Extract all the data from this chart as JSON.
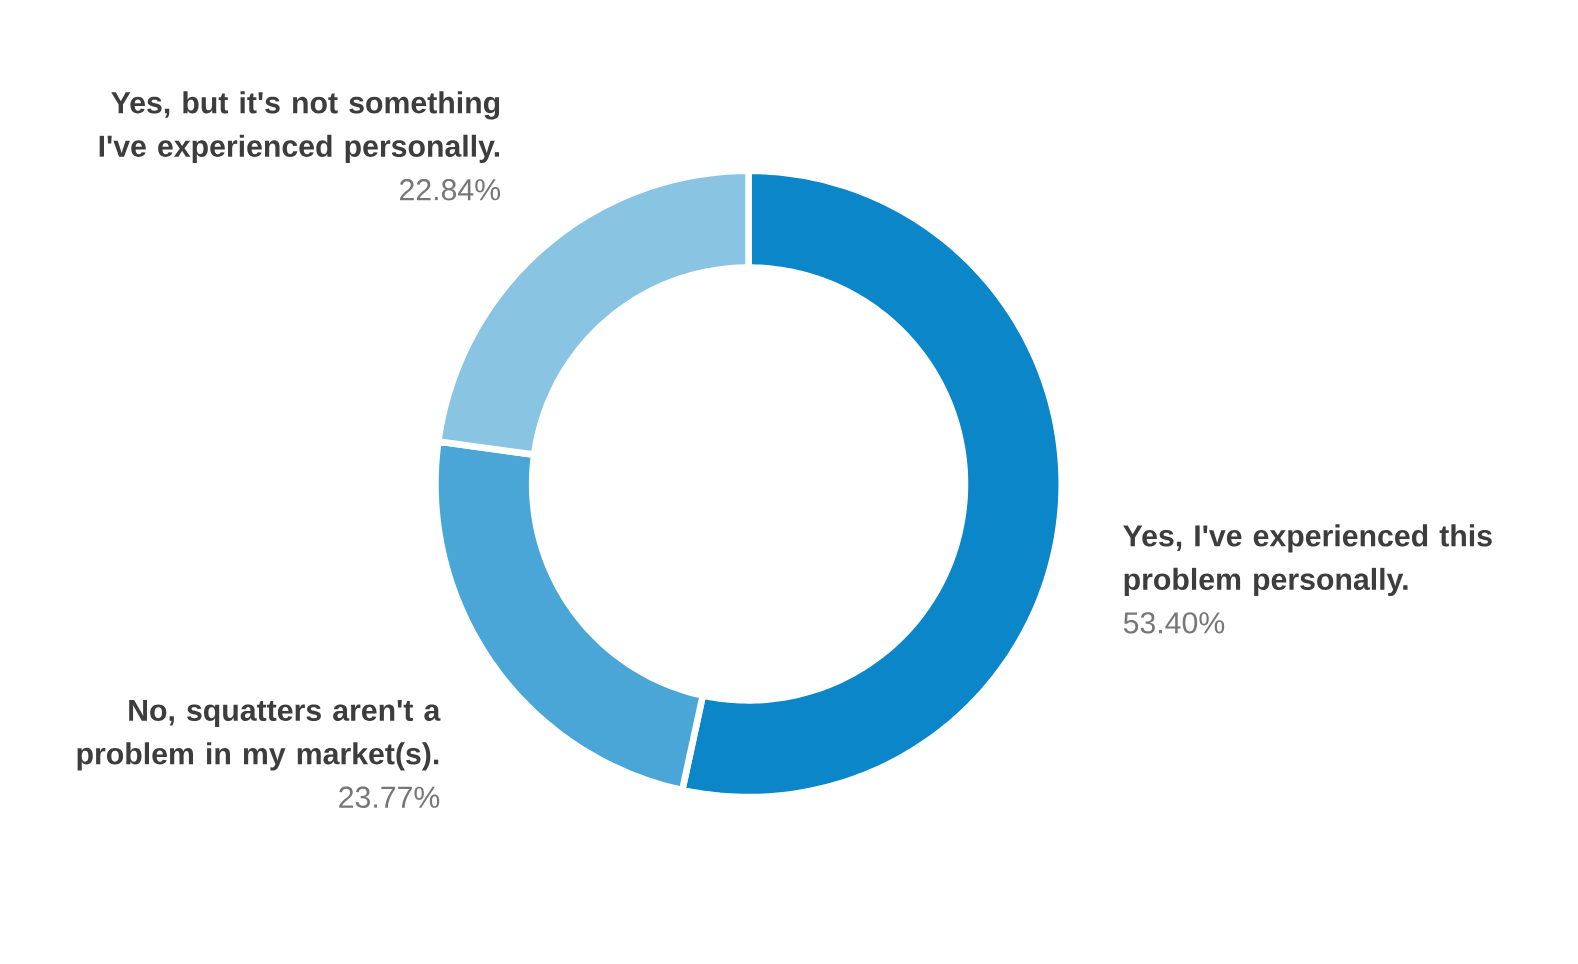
{
  "chart_data": {
    "type": "donut",
    "categories": [
      "Yes, I've experienced this problem personally.",
      "No, squatters aren't a problem in my market(s).",
      "Yes, but it's not something I've experienced personally."
    ],
    "values": [
      53.4,
      23.77,
      22.84
    ],
    "colors": [
      "#0b86c8",
      "#4aa6d6",
      "#89c4e3"
    ],
    "value_labels": [
      "53.40%",
      "23.77%",
      "22.84%"
    ]
  }
}
